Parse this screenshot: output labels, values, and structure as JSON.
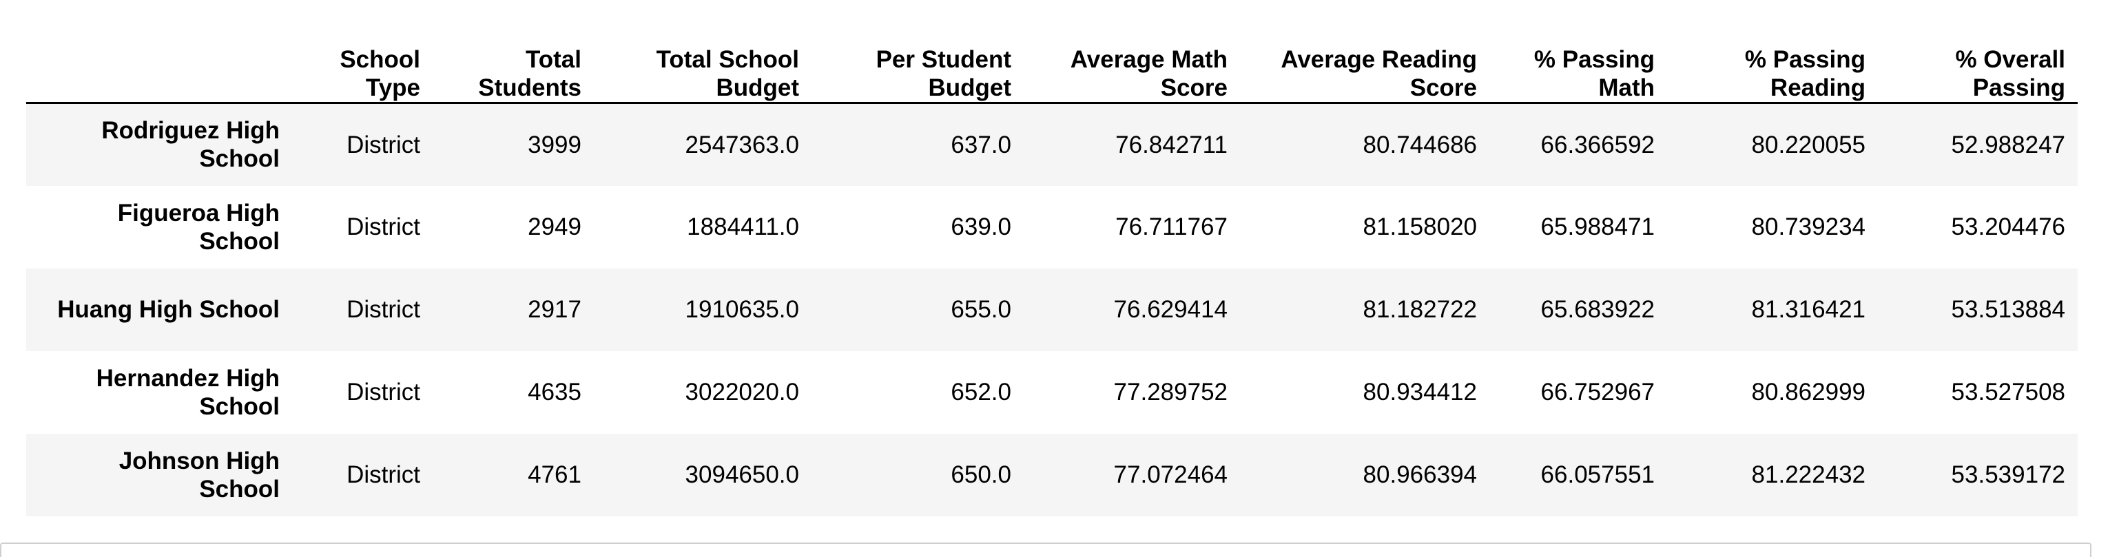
{
  "table": {
    "index_header": "",
    "columns": [
      "School Type",
      "Total Students",
      "Total School Budget",
      "Per Student Budget",
      "Average Math Score",
      "Average Reading Score",
      "% Passing Math",
      "% Passing Reading",
      "% Overall Passing"
    ],
    "rows": [
      {
        "name": "Rodriguez High School",
        "cells": [
          "District",
          "3999",
          "2547363.0",
          "637.0",
          "76.842711",
          "80.744686",
          "66.366592",
          "80.220055",
          "52.988247"
        ]
      },
      {
        "name": "Figueroa High School",
        "cells": [
          "District",
          "2949",
          "1884411.0",
          "639.0",
          "76.711767",
          "81.158020",
          "65.988471",
          "80.739234",
          "53.204476"
        ]
      },
      {
        "name": "Huang High School",
        "cells": [
          "District",
          "2917",
          "1910635.0",
          "655.0",
          "76.629414",
          "81.182722",
          "65.683922",
          "81.316421",
          "53.513884"
        ]
      },
      {
        "name": "Hernandez High School",
        "cells": [
          "District",
          "4635",
          "3022020.0",
          "652.0",
          "77.289752",
          "80.934412",
          "66.752967",
          "80.862999",
          "53.527508"
        ]
      },
      {
        "name": "Johnson High School",
        "cells": [
          "District",
          "4761",
          "3094650.0",
          "650.0",
          "77.072464",
          "80.966394",
          "66.057551",
          "81.222432",
          "53.539172"
        ]
      }
    ]
  },
  "colors": {
    "stripe": "#f5f5f5",
    "header_rule": "#000000",
    "cell_border": "#cfcfcf"
  }
}
